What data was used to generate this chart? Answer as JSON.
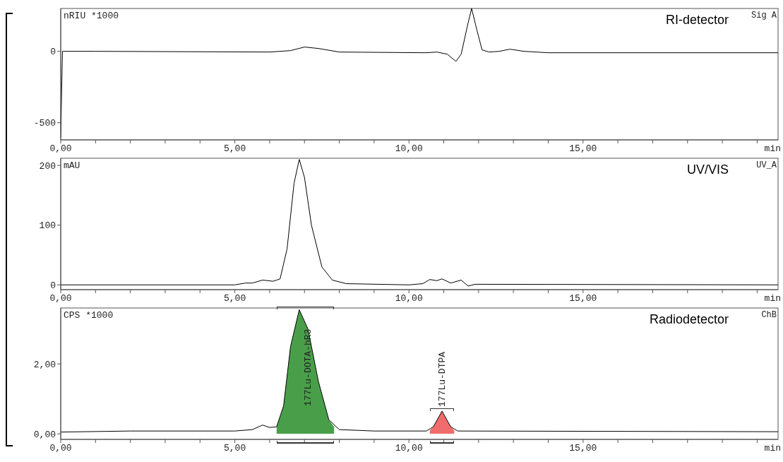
{
  "chart_data": [
    {
      "type": "line",
      "title": "RI-detector",
      "ylabel": "nRIU *1000",
      "xlabel": "min",
      "annotations": [
        "Sig A"
      ],
      "xlim": [
        0,
        20.6
      ],
      "xticks": [
        {
          "value": 0,
          "label": "0,00"
        },
        {
          "value": 1,
          "label": null
        },
        {
          "value": 2,
          "label": null
        },
        {
          "value": 3,
          "label": null
        },
        {
          "value": 4,
          "label": null
        },
        {
          "value": 5,
          "label": "5,00"
        },
        {
          "value": 6,
          "label": null
        },
        {
          "value": 7,
          "label": null
        },
        {
          "value": 8,
          "label": null
        },
        {
          "value": 9,
          "label": null
        },
        {
          "value": 10,
          "label": "10,00"
        },
        {
          "value": 11,
          "label": null
        },
        {
          "value": 12,
          "label": null
        },
        {
          "value": 13,
          "label": null
        },
        {
          "value": 14,
          "label": null
        },
        {
          "value": 15,
          "label": "15,00"
        },
        {
          "value": 16,
          "label": null
        },
        {
          "value": 17,
          "label": null
        },
        {
          "value": 18,
          "label": null
        },
        {
          "value": 19,
          "label": null
        },
        {
          "value": 20,
          "label": null
        }
      ],
      "ylim": [
        -620,
        300
      ],
      "yticks": [
        -500,
        0
      ],
      "x": [
        0,
        0.05,
        1,
        6,
        6.6,
        7,
        7.4,
        8,
        10.5,
        10.8,
        11.1,
        11.35,
        11.5,
        11.7,
        11.8,
        11.95,
        12.1,
        12.3,
        12.6,
        12.9,
        13.3,
        14,
        20.6
      ],
      "series": [
        {
          "color": "#000000",
          "values": [
            -600,
            0,
            0,
            -5,
            5,
            30,
            20,
            -5,
            -10,
            -5,
            -20,
            -70,
            -20,
            200,
            300,
            150,
            10,
            -5,
            0,
            15,
            0,
            -10,
            -10
          ]
        }
      ]
    },
    {
      "type": "line",
      "title": "UV/VIS",
      "ylabel": "mAU",
      "xlabel": "min",
      "annotations": [
        "UV_A"
      ],
      "xlim": [
        0,
        20.6
      ],
      "xticks": [
        {
          "value": 0,
          "label": "0,00"
        },
        {
          "value": 1,
          "label": null
        },
        {
          "value": 2,
          "label": null
        },
        {
          "value": 3,
          "label": null
        },
        {
          "value": 4,
          "label": null
        },
        {
          "value": 5,
          "label": "5,00"
        },
        {
          "value": 6,
          "label": null
        },
        {
          "value": 7,
          "label": null
        },
        {
          "value": 8,
          "label": null
        },
        {
          "value": 9,
          "label": null
        },
        {
          "value": 10,
          "label": "10,00"
        },
        {
          "value": 11,
          "label": null
        },
        {
          "value": 12,
          "label": null
        },
        {
          "value": 13,
          "label": null
        },
        {
          "value": 14,
          "label": null
        },
        {
          "value": 15,
          "label": "15,00"
        },
        {
          "value": 16,
          "label": null
        },
        {
          "value": 17,
          "label": null
        },
        {
          "value": 18,
          "label": null
        },
        {
          "value": 19,
          "label": null
        },
        {
          "value": 20,
          "label": null
        }
      ],
      "ylim": [
        -8,
        212
      ],
      "yticks": [
        0,
        100,
        200
      ],
      "x": [
        0,
        5,
        5.3,
        5.5,
        5.8,
        6.1,
        6.3,
        6.5,
        6.7,
        6.85,
        7.0,
        7.2,
        7.5,
        7.8,
        8.2,
        10,
        10.4,
        10.6,
        10.8,
        10.95,
        11.2,
        11.5,
        11.7,
        11.9,
        20.6
      ],
      "series": [
        {
          "color": "#000000",
          "values": [
            0,
            0,
            3,
            3,
            8,
            6,
            10,
            60,
            170,
            210,
            180,
            100,
            30,
            8,
            2,
            0,
            2,
            9,
            7,
            10,
            3,
            8,
            -2,
            1,
            0
          ]
        }
      ]
    },
    {
      "type": "line",
      "title": "Radiodetector",
      "ylabel": "CPS *1000",
      "xlabel": "min",
      "annotations": [
        "ChB",
        {
          "text": "177Lu-DOTA-hR3",
          "x": 7.1,
          "y": 3.0
        },
        {
          "text": "177Lu-DTPA",
          "x": 10.95,
          "y": 0.65
        }
      ],
      "xlim": [
        0,
        20.6
      ],
      "xticks": [
        {
          "value": 0,
          "label": "0,00"
        },
        {
          "value": 1,
          "label": null
        },
        {
          "value": 2,
          "label": null
        },
        {
          "value": 3,
          "label": null
        },
        {
          "value": 4,
          "label": null
        },
        {
          "value": 5,
          "label": "5,00"
        },
        {
          "value": 6,
          "label": null
        },
        {
          "value": 7,
          "label": null
        },
        {
          "value": 8,
          "label": null
        },
        {
          "value": 9,
          "label": null
        },
        {
          "value": 10,
          "label": "10,00"
        },
        {
          "value": 11,
          "label": null
        },
        {
          "value": 12,
          "label": null
        },
        {
          "value": 13,
          "label": null
        },
        {
          "value": 14,
          "label": null
        },
        {
          "value": 15,
          "label": "15,00"
        },
        {
          "value": 16,
          "label": null
        },
        {
          "value": 17,
          "label": null
        },
        {
          "value": 18,
          "label": null
        },
        {
          "value": 19,
          "label": null
        },
        {
          "value": 20,
          "label": null
        }
      ],
      "ylim": [
        -0.16,
        3.6
      ],
      "yticks": [
        {
          "value": 0,
          "label": "0,00"
        },
        {
          "value": 2,
          "label": "2,00"
        }
      ],
      "x": [
        0,
        2,
        5,
        5.5,
        5.8,
        6.0,
        6.2,
        6.4,
        6.6,
        6.85,
        7.1,
        7.4,
        7.7,
        8.0,
        9,
        10.5,
        10.7,
        10.95,
        11.2,
        11.4,
        20.6
      ],
      "series": [
        {
          "type": "area",
          "color": "#3f9a3f",
          "x": [
            6.2,
            6.4,
            6.6,
            6.85,
            7.1,
            7.4,
            7.7,
            7.85
          ],
          "values": [
            0.2,
            0.8,
            2.5,
            3.55,
            3.0,
            1.5,
            0.4,
            0.2
          ]
        },
        {
          "type": "area",
          "color": "#f06464",
          "x": [
            10.6,
            10.7,
            10.95,
            11.2,
            11.3
          ],
          "values": [
            0.1,
            0.2,
            0.65,
            0.2,
            0.1
          ]
        },
        {
          "color": "#000000",
          "values": [
            0.05,
            0.08,
            0.08,
            0.12,
            0.25,
            0.18,
            0.2,
            0.8,
            2.5,
            3.55,
            3.0,
            1.5,
            0.4,
            0.12,
            0.08,
            0.08,
            0.2,
            0.65,
            0.2,
            0.08,
            0.06
          ]
        }
      ]
    }
  ]
}
